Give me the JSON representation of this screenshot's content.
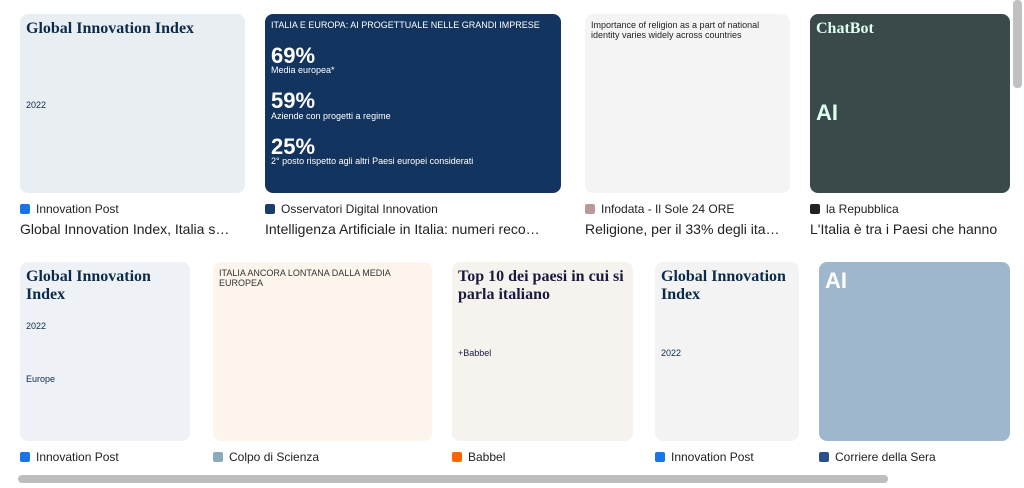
{
  "results": [
    {
      "source": "Innovation Post",
      "title": "Global Innovation Index, Italia s…",
      "image_text": [
        "Global Innovation Index",
        "2022"
      ]
    },
    {
      "source": "Osservatori Digital Innovation",
      "title": "Intelligenza Artificiale in Italia: numeri reco…",
      "image_text": [
        "ITALIA E EUROPA: AI PROGETTUALE NELLE GRANDI IMPRESE",
        "69%",
        "Media europea*",
        "59%",
        "Aziende con progetti a regime",
        "25%",
        "2° posto rispetto agli altri Paesi europei considerati"
      ]
    },
    {
      "source": "Infodata - Il Sole 24 ORE",
      "title": "Religione, per il 33% degli ita…",
      "image_text": [
        "Importance of religion as a part of national identity varies widely across countries"
      ]
    },
    {
      "source": "la Repubblica",
      "title": "L'Italia è tra i Paesi che hanno",
      "image_text": [
        "ChatBot",
        "AI"
      ]
    },
    {
      "source": "Innovation Post",
      "title": "",
      "image_text": [
        "Global Innovation Index",
        "2022",
        "Europe"
      ]
    },
    {
      "source": "Colpo di Scienza",
      "title": "",
      "image_text": [
        "ITALIA ANCORA LONTANA DALLA MEDIA EUROPEA"
      ]
    },
    {
      "source": "Babbel",
      "title": "",
      "image_text": [
        "Top 10 dei paesi in cui si parla italiano",
        "+Babbel"
      ]
    },
    {
      "source": "Innovation Post",
      "title": "",
      "image_text": [
        "Global Innovation Index",
        "2022"
      ]
    },
    {
      "source": "Corriere della Sera",
      "title": "",
      "image_text": [
        "AI"
      ]
    }
  ]
}
